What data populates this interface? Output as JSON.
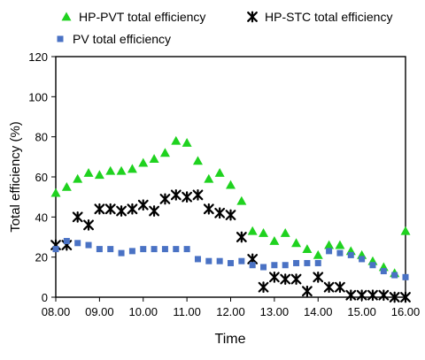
{
  "chart_data": {
    "type": "scatter",
    "xlabel": "Time",
    "ylabel": "Total efficiency (%)",
    "xlim": [
      8.0,
      16.0
    ],
    "ylim": [
      0,
      120
    ],
    "x_ticks": [
      8,
      9,
      10,
      11,
      12,
      13,
      14,
      15,
      16
    ],
    "x_tick_labels": [
      "08.00",
      "09.00",
      "10.00",
      "11.00",
      "12.00",
      "13.00",
      "14.00",
      "15.00",
      "16.00"
    ],
    "y_ticks": [
      0,
      20,
      40,
      60,
      80,
      100,
      120
    ],
    "y_tick_labels": [
      "0",
      "20",
      "40",
      "60",
      "80",
      "100",
      "120"
    ],
    "grid": false,
    "legend_position": "top",
    "series": [
      {
        "name": "HP-PVT total efficiency",
        "marker": "triangle",
        "color": "#1fd21f",
        "points": [
          [
            8.0,
            52
          ],
          [
            8.25,
            55
          ],
          [
            8.5,
            59
          ],
          [
            8.75,
            62
          ],
          [
            9.0,
            61
          ],
          [
            9.25,
            63
          ],
          [
            9.5,
            63
          ],
          [
            9.75,
            64
          ],
          [
            10.0,
            67
          ],
          [
            10.25,
            69
          ],
          [
            10.5,
            72
          ],
          [
            10.75,
            78
          ],
          [
            11.0,
            77
          ],
          [
            11.25,
            68
          ],
          [
            11.5,
            59
          ],
          [
            11.75,
            62
          ],
          [
            12.0,
            56
          ],
          [
            12.25,
            48
          ],
          [
            12.5,
            33
          ],
          [
            12.75,
            32
          ],
          [
            13.0,
            28
          ],
          [
            13.25,
            32
          ],
          [
            13.5,
            27
          ],
          [
            13.75,
            24
          ],
          [
            14.0,
            21
          ],
          [
            14.25,
            26
          ],
          [
            14.5,
            26
          ],
          [
            14.75,
            23
          ],
          [
            15.0,
            21
          ],
          [
            15.25,
            18
          ],
          [
            15.5,
            15
          ],
          [
            15.75,
            12
          ],
          [
            16.0,
            33
          ]
        ]
      },
      {
        "name": "HP-STC total efficiency",
        "marker": "asterisk",
        "color": "#000000",
        "points": [
          [
            8.0,
            26
          ],
          [
            8.25,
            26
          ],
          [
            8.5,
            40
          ],
          [
            8.75,
            36
          ],
          [
            9.0,
            44
          ],
          [
            9.25,
            44
          ],
          [
            9.5,
            43
          ],
          [
            9.75,
            44
          ],
          [
            10.0,
            46
          ],
          [
            10.25,
            43
          ],
          [
            10.5,
            49
          ],
          [
            10.75,
            51
          ],
          [
            11.0,
            50
          ],
          [
            11.25,
            51
          ],
          [
            11.5,
            44
          ],
          [
            11.75,
            42
          ],
          [
            12.0,
            41
          ],
          [
            12.25,
            30
          ],
          [
            12.5,
            19
          ],
          [
            12.75,
            5
          ],
          [
            13.0,
            10
          ],
          [
            13.25,
            9
          ],
          [
            13.5,
            9
          ],
          [
            13.75,
            3
          ],
          [
            14.0,
            10
          ],
          [
            14.25,
            5
          ],
          [
            14.5,
            5
          ],
          [
            14.75,
            1
          ],
          [
            15.0,
            1
          ],
          [
            15.25,
            1
          ],
          [
            15.5,
            1
          ],
          [
            15.75,
            0
          ],
          [
            16.0,
            0
          ]
        ]
      },
      {
        "name": "PV total efficiency",
        "marker": "square",
        "color": "#4a72c4",
        "points": [
          [
            8.0,
            24
          ],
          [
            8.25,
            28
          ],
          [
            8.5,
            27
          ],
          [
            8.75,
            26
          ],
          [
            9.0,
            24
          ],
          [
            9.25,
            24
          ],
          [
            9.5,
            22
          ],
          [
            9.75,
            23
          ],
          [
            10.0,
            24
          ],
          [
            10.25,
            24
          ],
          [
            10.5,
            24
          ],
          [
            10.75,
            24
          ],
          [
            11.0,
            24
          ],
          [
            11.25,
            19
          ],
          [
            11.5,
            18
          ],
          [
            11.75,
            18
          ],
          [
            12.0,
            17
          ],
          [
            12.25,
            18
          ],
          [
            12.5,
            16
          ],
          [
            12.75,
            15
          ],
          [
            13.0,
            16
          ],
          [
            13.25,
            16
          ],
          [
            13.5,
            17
          ],
          [
            13.75,
            17
          ],
          [
            14.0,
            17
          ],
          [
            14.25,
            23
          ],
          [
            14.5,
            22
          ],
          [
            14.75,
            21
          ],
          [
            15.0,
            19
          ],
          [
            15.25,
            16
          ],
          [
            15.5,
            13
          ],
          [
            15.75,
            11
          ],
          [
            16.0,
            10
          ]
        ]
      }
    ]
  }
}
